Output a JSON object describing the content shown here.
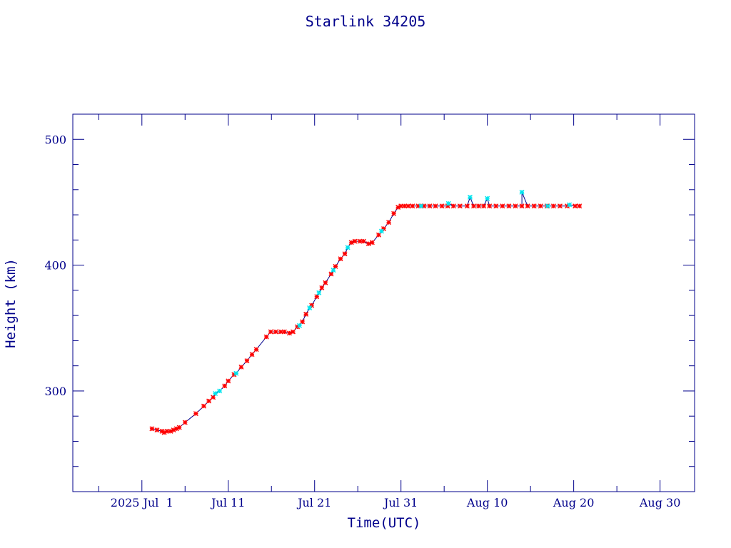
{
  "chart_data": {
    "type": "line",
    "title": "Starlink 34205",
    "xlabel": "Time(UTC)",
    "ylabel": "Height (km)",
    "xlim": [
      "2025-06-23",
      "2025-09-03"
    ],
    "ylim": [
      220,
      520
    ],
    "x_ticks": [
      {
        "date": "2025-07-01",
        "label": "2025 Jul  1"
      },
      {
        "date": "2025-07-11",
        "label": "Jul 11"
      },
      {
        "date": "2025-07-21",
        "label": "Jul 21"
      },
      {
        "date": "2025-07-31",
        "label": "Jul 31"
      },
      {
        "date": "2025-08-10",
        "label": "Aug 10"
      },
      {
        "date": "2025-08-20",
        "label": "Aug 20"
      },
      {
        "date": "2025-08-30",
        "label": "Aug 30"
      }
    ],
    "y_ticks": [
      300,
      400,
      500
    ],
    "grid": false,
    "colors": {
      "axes": "#00008b",
      "line": "#00008b",
      "red_markers": "#ff0000",
      "cyan_markers": "#00e5ee"
    },
    "series": [
      {
        "marker_color": "red",
        "points": [
          [
            "2025-07-02 04:00",
            270
          ],
          [
            "2025-07-02 18:00",
            269
          ],
          [
            "2025-07-03 08:00",
            268
          ],
          [
            "2025-07-03 14:00",
            267
          ],
          [
            "2025-07-03 22:00",
            268
          ],
          [
            "2025-07-04 08:00",
            268
          ],
          [
            "2025-07-04 16:00",
            269
          ],
          [
            "2025-07-05 00:00",
            270
          ],
          [
            "2025-07-05 08:00",
            271
          ],
          [
            "2025-07-06 00:00",
            275
          ],
          [
            "2025-07-07 06:00",
            282
          ],
          [
            "2025-07-08 04:00",
            288
          ],
          [
            "2025-07-08 18:00",
            292
          ],
          [
            "2025-07-09 06:00",
            295
          ],
          [
            "2025-07-10 14:00",
            304
          ],
          [
            "2025-07-11 00:00",
            308
          ],
          [
            "2025-07-11 16:00",
            313
          ],
          [
            "2025-07-12 12:00",
            319
          ],
          [
            "2025-07-13 04:00",
            324
          ],
          [
            "2025-07-13 18:00",
            329
          ],
          [
            "2025-07-14 06:00",
            333
          ],
          [
            "2025-07-15 10:00",
            343
          ],
          [
            "2025-07-15 22:00",
            347
          ],
          [
            "2025-07-16 12:00",
            347
          ],
          [
            "2025-07-17 02:00",
            347
          ],
          [
            "2025-07-17 12:00",
            347
          ],
          [
            "2025-07-18 02:00",
            346
          ],
          [
            "2025-07-18 12:00",
            347
          ],
          [
            "2025-07-19 00:00",
            351
          ],
          [
            "2025-07-19 14:00",
            355
          ],
          [
            "2025-07-20 00:00",
            361
          ],
          [
            "2025-07-20 16:00",
            368
          ],
          [
            "2025-07-21 06:00",
            375
          ],
          [
            "2025-07-21 20:00",
            382
          ],
          [
            "2025-07-22 06:00",
            386
          ],
          [
            "2025-07-22 22:00",
            393
          ],
          [
            "2025-07-23 10:00",
            399
          ],
          [
            "2025-07-24 00:00",
            405
          ],
          [
            "2025-07-24 12:00",
            409
          ],
          [
            "2025-07-25 06:00",
            418
          ],
          [
            "2025-07-25 16:00",
            419
          ],
          [
            "2025-07-26 06:00",
            419
          ],
          [
            "2025-07-26 16:00",
            419
          ],
          [
            "2025-07-27 06:00",
            417
          ],
          [
            "2025-07-27 16:00",
            418
          ],
          [
            "2025-07-28 10:00",
            424
          ],
          [
            "2025-07-29 00:00",
            429
          ],
          [
            "2025-07-29 14:00",
            434
          ],
          [
            "2025-07-30 04:00",
            441
          ],
          [
            "2025-07-30 16:00",
            446
          ],
          [
            "2025-07-31 00:00",
            447
          ],
          [
            "2025-07-31 10:00",
            447
          ],
          [
            "2025-07-31 20:00",
            447
          ],
          [
            "2025-08-01 08:00",
            447
          ],
          [
            "2025-08-02 00:00",
            447
          ],
          [
            "2025-08-02 16:00",
            447
          ],
          [
            "2025-08-03 08:00",
            447
          ],
          [
            "2025-08-04 00:00",
            447
          ],
          [
            "2025-08-04 18:00",
            447
          ],
          [
            "2025-08-05 10:00",
            447
          ],
          [
            "2025-08-06 02:00",
            447
          ],
          [
            "2025-08-06 20:00",
            447
          ],
          [
            "2025-08-07 16:00",
            447
          ],
          [
            "2025-08-08 10:00",
            447
          ],
          [
            "2025-08-09 00:00",
            447
          ],
          [
            "2025-08-09 14:00",
            447
          ],
          [
            "2025-08-10 06:00",
            447
          ],
          [
            "2025-08-11 00:00",
            447
          ],
          [
            "2025-08-11 18:00",
            447
          ],
          [
            "2025-08-12 12:00",
            447
          ],
          [
            "2025-08-13 06:00",
            447
          ],
          [
            "2025-08-14 00:00",
            447
          ],
          [
            "2025-08-14 16:00",
            447
          ],
          [
            "2025-08-15 10:00",
            447
          ],
          [
            "2025-08-16 04:00",
            447
          ],
          [
            "2025-08-16 22:00",
            447
          ],
          [
            "2025-08-17 16:00",
            447
          ],
          [
            "2025-08-18 10:00",
            447
          ],
          [
            "2025-08-19 06:00",
            447
          ],
          [
            "2025-08-20 04:00",
            447
          ],
          [
            "2025-08-20 16:00",
            447
          ]
        ]
      },
      {
        "marker_color": "cyan",
        "points": [
          [
            "2025-07-09 12:00",
            298
          ],
          [
            "2025-07-10 00:00",
            300
          ],
          [
            "2025-07-11 22:00",
            314
          ],
          [
            "2025-07-19 06:00",
            352
          ],
          [
            "2025-07-20 10:00",
            366
          ],
          [
            "2025-07-21 12:00",
            378
          ],
          [
            "2025-07-23 04:00",
            396
          ],
          [
            "2025-07-24 20:00",
            414
          ],
          [
            "2025-07-28 18:00",
            427
          ],
          [
            "2025-08-02 08:00",
            447
          ],
          [
            "2025-08-05 12:00",
            449
          ],
          [
            "2025-08-08 00:00",
            454
          ],
          [
            "2025-08-10 00:00",
            453
          ],
          [
            "2025-08-14 00:00",
            458
          ],
          [
            "2025-08-17 00:00",
            447
          ],
          [
            "2025-08-19 12:00",
            448
          ]
        ]
      }
    ]
  }
}
